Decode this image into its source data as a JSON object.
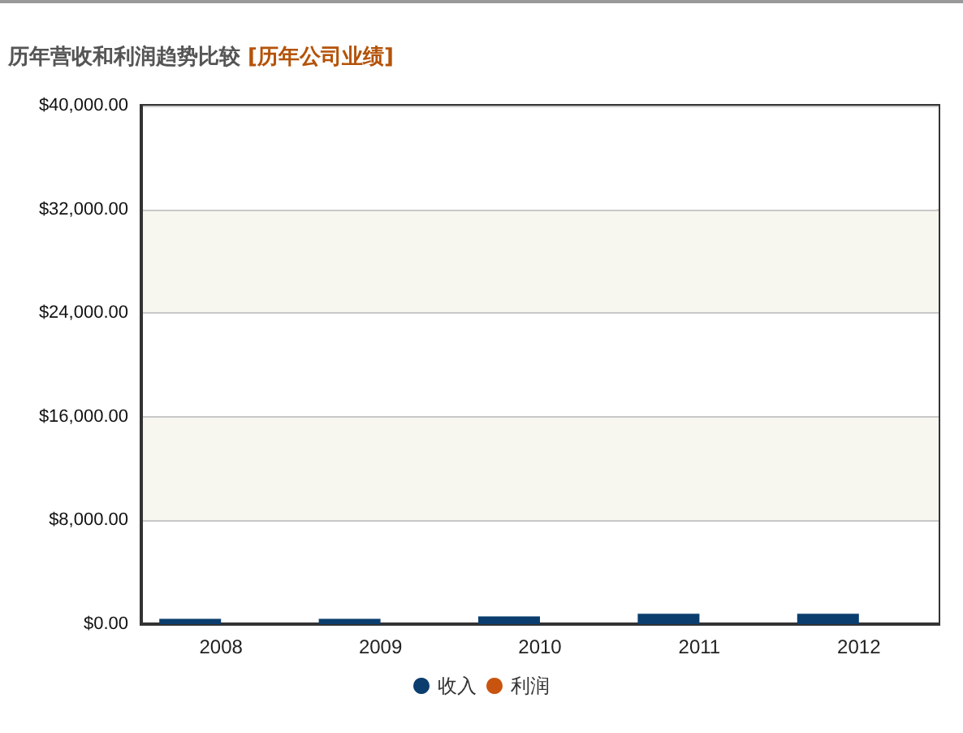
{
  "chart_data": {
    "type": "bar",
    "title": "历年营收和利润趋势比较",
    "subtitle": "[历年公司业绩]",
    "categories": [
      "2008",
      "2009",
      "2010",
      "2011",
      "2012"
    ],
    "series": [
      {
        "name": "收入",
        "color": "#0b3e6e",
        "values": [
          400,
          400,
          600,
          800,
          800
        ]
      },
      {
        "name": "利润",
        "color": "#c9540f",
        "values": [
          0,
          0,
          0,
          0,
          0
        ]
      }
    ],
    "ylim": [
      0,
      40000
    ],
    "yticks": [
      {
        "value": 0,
        "label": "$0.00"
      },
      {
        "value": 8000,
        "label": "$8,000.00"
      },
      {
        "value": 16000,
        "label": "$16,000.00"
      },
      {
        "value": 24000,
        "label": "$24,000.00"
      },
      {
        "value": 32000,
        "label": "$32,000.00"
      },
      {
        "value": 40000,
        "label": "$40,000.00"
      }
    ],
    "grid": "y",
    "legend": "bottom"
  }
}
